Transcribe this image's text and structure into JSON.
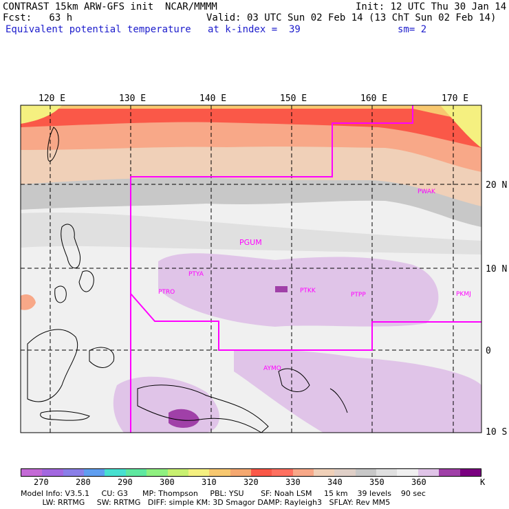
{
  "header": {
    "line1_left": "CONTRAST 15km ARW-GFS init  NCAR/MMMM",
    "line1_right": "Init: 12 UTC Thu 30 Jan 14",
    "line2_left": "Fcst:   63 h",
    "line2_right": "Valid: 03 UTC Sun 02 Feb 14 (13 ChT Sun 02 Feb 14)",
    "line3_field": "Equivalent potential temperature",
    "line3_level": "at k-index =  39",
    "line3_sm": "sm= 2"
  },
  "map": {
    "lon_labels": [
      "120 E",
      "130 E",
      "140 E",
      "150 E",
      "160 E",
      "170 E"
    ],
    "lat_labels": [
      "20 N",
      "10 N",
      "0",
      "10 S"
    ],
    "stations": [
      "PGUM",
      "PTYA",
      "PTRO",
      "PTKK",
      "PTPP",
      "PKMJ",
      "PWAK",
      "AYMO"
    ]
  },
  "colorbar": {
    "tick_labels": [
      "270",
      "280",
      "290",
      "300",
      "310",
      "320",
      "330",
      "340",
      "350",
      "360"
    ],
    "unit": "K",
    "colors": [
      "#c46ad6",
      "#a368e0",
      "#8a7fe8",
      "#5f9ef0",
      "#47e0d0",
      "#5fe8a0",
      "#8ff080",
      "#c8f070",
      "#f5f080",
      "#f8c870",
      "#f5a870",
      "#fa5848",
      "#ff7060",
      "#f8a888",
      "#f0d0b8",
      "#e0d0c8",
      "#c8c8c8",
      "#e0e0e0",
      "#f0f0f0",
      "#e0c4e8",
      "#a040a8",
      "#7a0080"
    ]
  },
  "footer": {
    "line1": "Model Info: V3.5.1     CU: G3      MP: Thompson     PBL: YSU       SF: Noah LSM     15 km    39 levels    90 sec",
    "line2": "         LW: RRTMG     SW: RRTMG   DIFF: simple KM: 3D Smagor DAMP: Rayleigh3   SFLAY: Rev MM5"
  }
}
